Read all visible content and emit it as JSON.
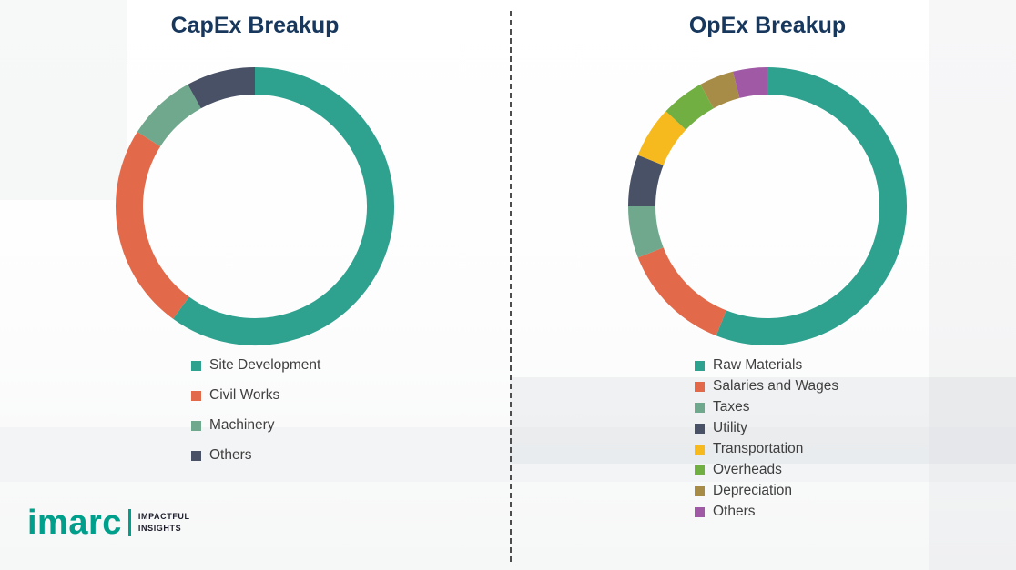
{
  "divider": {
    "style": "dashed",
    "color": "#4d4d4d"
  },
  "title_color": "#17375D",
  "legend_text_color": "#3f3f3f",
  "chart_data": [
    {
      "type": "pie",
      "subtype": "donut",
      "title": "CapEx Breakup",
      "labels": [
        "Site Development",
        "Civil Works",
        "Machinery",
        "Others"
      ],
      "values": [
        60,
        24,
        8,
        8
      ],
      "colors": [
        "#2FA18F",
        "#E2694A",
        "#6FA88C",
        "#485166"
      ],
      "start_angle": 0,
      "direction": "clockwise",
      "legend_position": "bottom-left"
    },
    {
      "type": "pie",
      "subtype": "donut",
      "title": "OpEx Breakup",
      "labels": [
        "Raw Materials",
        "Salaries and Wages",
        "Taxes",
        "Utility",
        "Transportation",
        "Overheads",
        "Depreciation",
        "Others"
      ],
      "values": [
        56,
        13,
        6,
        6,
        6,
        5,
        4,
        4
      ],
      "colors": [
        "#2FA18F",
        "#E2694A",
        "#6FA88C",
        "#485166",
        "#F6BA1F",
        "#72AF42",
        "#A78C48",
        "#A05AA5"
      ],
      "start_angle": 0,
      "direction": "clockwise",
      "legend_position": "bottom-left"
    }
  ],
  "logo": {
    "brand": "imarc",
    "brand_color": "#009F8C",
    "tagline": [
      "IMPACTFUL",
      "INSIGHTS"
    ],
    "tagline_color": "#1d1d2b"
  }
}
